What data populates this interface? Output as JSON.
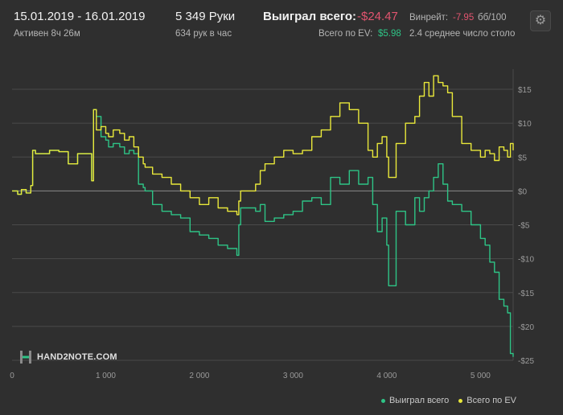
{
  "header": {
    "date_range": "15.01.2019 - 16.01.2019",
    "active_time": "Активен 8ч 26м",
    "hands": "5 349 Руки",
    "hands_per_hour": "634 рук в час",
    "won_total_label": "Выиграл всего:",
    "won_total_value": "-$24.47",
    "ev_total_label": "Всего по EV:",
    "ev_total_value": "$5.98",
    "winrate_label": "Винрейт:",
    "winrate_value": "-7.95",
    "winrate_unit": "бб/100",
    "avg_tables": "2.4 среднее число столо"
  },
  "logo": {
    "text": "HAND2NOTE.COM"
  },
  "colors": {
    "won": "#2ec486",
    "ev": "#e9e83a",
    "background": "#2f2f2f",
    "grid": "#4a4a4a",
    "axis_text": "#9a9a9a",
    "negative": "#e2546f"
  },
  "chart_data": {
    "type": "line",
    "xlabel": "",
    "ylabel": "",
    "xlim": [
      0,
      5349
    ],
    "ylim": [
      -25,
      17.5
    ],
    "x_ticks": [
      0,
      1000,
      2000,
      3000,
      4000,
      5000
    ],
    "x_tick_labels": [
      "0",
      "1 000",
      "2 000",
      "3 000",
      "4 000",
      "5 000"
    ],
    "y_ticks": [
      15,
      10,
      5,
      0,
      -5,
      -10,
      -15,
      -20,
      -25
    ],
    "y_tick_labels": [
      "$15",
      "$10",
      "$5",
      "$0",
      "-$5",
      "-$10",
      "-$15",
      "-$20",
      "-$25"
    ],
    "grid": true,
    "legend_position": "bottom-right",
    "series": [
      {
        "name": "Выиграл всего",
        "color": "#2ec486",
        "x": [
          0,
          60,
          100,
          150,
          200,
          220,
          250,
          400,
          500,
          600,
          700,
          830,
          850,
          870,
          900,
          950,
          1000,
          1030,
          1080,
          1150,
          1200,
          1250,
          1300,
          1350,
          1400,
          1420,
          1500,
          1600,
          1700,
          1800,
          1900,
          2000,
          2100,
          2200,
          2300,
          2400,
          2420,
          2440,
          2600,
          2650,
          2700,
          2800,
          2900,
          3000,
          3100,
          3200,
          3300,
          3400,
          3500,
          3600,
          3700,
          3800,
          3850,
          3900,
          3950,
          4000,
          4020,
          4100,
          4200,
          4300,
          4350,
          4400,
          4450,
          4500,
          4550,
          4600,
          4650,
          4700,
          4800,
          4900,
          5000,
          5050,
          5100,
          5150,
          5200,
          5250,
          5290,
          5320,
          5349
        ],
        "values": [
          0,
          -0.5,
          0.2,
          -0.3,
          0.8,
          6.0,
          5.5,
          6.0,
          5.8,
          4.0,
          5.5,
          5.5,
          1.5,
          12.0,
          11.0,
          8.0,
          7.5,
          6.5,
          7.0,
          6.5,
          5.5,
          6.0,
          5.5,
          1.0,
          0.5,
          0.0,
          -2.0,
          -3.0,
          -3.5,
          -4.0,
          -6.0,
          -6.5,
          -7.0,
          -8.0,
          -8.5,
          -9.5,
          -5.0,
          -2.5,
          -3.0,
          -2.0,
          -4.5,
          -4.0,
          -3.5,
          -3.0,
          -1.5,
          -1.0,
          -2.0,
          2.0,
          1.0,
          3.0,
          1.0,
          2.0,
          -2.0,
          -6.0,
          -4.0,
          -8.0,
          -14.0,
          -3.0,
          -5.0,
          -1.0,
          -3.0,
          -1.0,
          0.0,
          2.0,
          4.0,
          1.0,
          -1.5,
          -2.0,
          -3.0,
          -5.0,
          -7.0,
          -8.0,
          -10.5,
          -12.0,
          -16.0,
          -17.0,
          -18.0,
          -24.0,
          -24.5
        ]
      },
      {
        "name": "Всего по EV",
        "color": "#e9e83a",
        "x": [
          0,
          60,
          100,
          150,
          200,
          220,
          250,
          400,
          500,
          600,
          700,
          830,
          850,
          870,
          900,
          950,
          1000,
          1030,
          1080,
          1150,
          1200,
          1250,
          1300,
          1350,
          1400,
          1420,
          1500,
          1600,
          1700,
          1800,
          1900,
          2000,
          2100,
          2200,
          2300,
          2400,
          2420,
          2440,
          2600,
          2650,
          2700,
          2800,
          2900,
          3000,
          3100,
          3200,
          3300,
          3400,
          3500,
          3600,
          3700,
          3800,
          3850,
          3900,
          3950,
          4000,
          4020,
          4100,
          4200,
          4300,
          4350,
          4400,
          4450,
          4500,
          4550,
          4600,
          4650,
          4700,
          4800,
          4900,
          5000,
          5050,
          5100,
          5150,
          5200,
          5250,
          5290,
          5320,
          5349
        ],
        "values": [
          0,
          -0.5,
          0.2,
          -0.3,
          0.8,
          6.0,
          5.5,
          6.0,
          5.8,
          4.0,
          5.5,
          5.5,
          1.5,
          12.0,
          9.0,
          9.5,
          8.5,
          8.0,
          9.0,
          8.5,
          7.5,
          8.0,
          6.5,
          5.0,
          4.0,
          3.5,
          2.5,
          2.0,
          1.0,
          0.0,
          -1.0,
          -2.0,
          -1.0,
          -2.5,
          -3.0,
          -3.5,
          -1.5,
          0.0,
          1.0,
          3.0,
          4.0,
          5.0,
          6.0,
          5.5,
          6.0,
          8.0,
          9.0,
          11.0,
          13.0,
          12.0,
          10.0,
          6.0,
          5.0,
          7.0,
          8.0,
          5.0,
          2.0,
          7.0,
          10.0,
          11.0,
          14.0,
          16.0,
          14.0,
          17.0,
          16.0,
          15.5,
          14.5,
          11.0,
          7.0,
          6.0,
          5.0,
          6.0,
          5.5,
          4.5,
          6.5,
          6.0,
          5.0,
          7.0,
          6.0
        ]
      }
    ]
  }
}
